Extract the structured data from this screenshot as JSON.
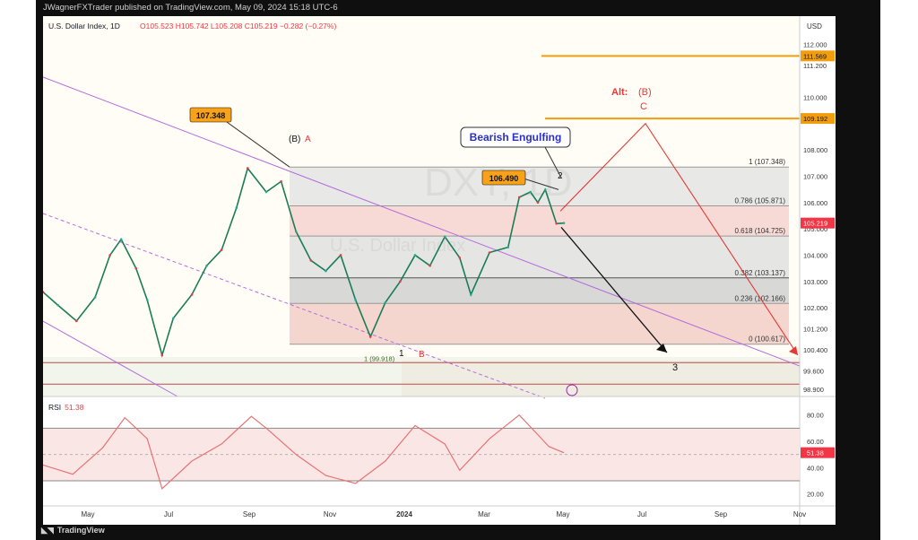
{
  "header": {
    "publisher": "JWagnerFXTrader published on TradingView.com, May 09, 2024 15:18 UTC-6"
  },
  "footer": {
    "brand": "TradingView"
  },
  "legend": {
    "symbol": "U.S. Dollar Index, 1D",
    "ohlc": "O105.523  H105.742  L105.208  C105.219  −0.282 (−0.27%)"
  },
  "chart_data": {
    "type": "line",
    "currency": "USD",
    "watermark": "DXY, 1D",
    "watermark_sub": "U.S. Dollar Index",
    "y_ticks": [
      "112.000",
      "111.200",
      "110.000",
      "109.200",
      "108.000",
      "107.000",
      "106.000",
      "105.000",
      "104.000",
      "103.000",
      "102.000",
      "101.200",
      "100.400",
      "99.600",
      "98.900"
    ],
    "x_ticks": [
      "May",
      "Jul",
      "Sep",
      "Nov",
      "2024",
      "Mar",
      "May",
      "Jul",
      "Sep",
      "Nov"
    ],
    "last_price": "105.219",
    "price_badges": [
      "111.569",
      "109.192"
    ],
    "fib_levels": [
      {
        "label": "1 (107.348)",
        "value": 107.348
      },
      {
        "label": "0.786 (105.871)",
        "value": 105.871
      },
      {
        "label": "0.618 (104.725)",
        "value": 104.725
      },
      {
        "label": "0.382 (103.137)",
        "value": 103.137
      },
      {
        "label": "0.236 (102.166)",
        "value": 102.166
      },
      {
        "label": "0 (100.617)",
        "value": 100.617
      }
    ],
    "fib_lower_label": "1 (99.918)",
    "callouts": [
      "107.348",
      "106.490",
      "Bearish Engulfing"
    ],
    "wave_labels": {
      "b_black": "(B)",
      "a_red": "A",
      "alt": "Alt:",
      "alt_b": "(B)",
      "c": "C",
      "w2": "2",
      "w1": "1",
      "b2": "B",
      "w3": "3"
    },
    "price_path": [
      [
        0,
        102.6
      ],
      [
        0.02,
        102.1
      ],
      [
        0.045,
        101.5
      ],
      [
        0.07,
        102.4
      ],
      [
        0.09,
        104.0
      ],
      [
        0.105,
        104.6
      ],
      [
        0.125,
        103.5
      ],
      [
        0.14,
        102.3
      ],
      [
        0.16,
        100.2
      ],
      [
        0.175,
        101.6
      ],
      [
        0.2,
        102.5
      ],
      [
        0.22,
        103.6
      ],
      [
        0.24,
        104.2
      ],
      [
        0.26,
        105.8
      ],
      [
        0.275,
        107.3
      ],
      [
        0.3,
        106.4
      ],
      [
        0.32,
        106.8
      ],
      [
        0.34,
        104.9
      ],
      [
        0.36,
        103.8
      ],
      [
        0.38,
        103.4
      ],
      [
        0.4,
        104.0
      ],
      [
        0.42,
        102.3
      ],
      [
        0.44,
        100.9
      ],
      [
        0.46,
        102.2
      ],
      [
        0.48,
        103.0
      ],
      [
        0.5,
        104.0
      ],
      [
        0.52,
        103.6
      ],
      [
        0.54,
        104.7
      ],
      [
        0.56,
        103.9
      ],
      [
        0.575,
        102.5
      ],
      [
        0.6,
        104.1
      ],
      [
        0.625,
        104.3
      ],
      [
        0.64,
        106.2
      ],
      [
        0.655,
        106.4
      ],
      [
        0.665,
        106.0
      ],
      [
        0.675,
        106.49
      ],
      [
        0.69,
        105.2
      ],
      [
        0.7,
        105.219
      ]
    ],
    "rsi": {
      "label": "RSI",
      "value": "51.38",
      "ticks": [
        "80.00",
        "60.00",
        "40.00",
        "20.00"
      ],
      "points": [
        [
          0,
          42
        ],
        [
          0.04,
          35
        ],
        [
          0.08,
          55
        ],
        [
          0.11,
          78
        ],
        [
          0.14,
          62
        ],
        [
          0.16,
          24
        ],
        [
          0.2,
          45
        ],
        [
          0.24,
          58
        ],
        [
          0.28,
          79
        ],
        [
          0.3,
          70
        ],
        [
          0.34,
          50
        ],
        [
          0.38,
          34
        ],
        [
          0.42,
          28
        ],
        [
          0.46,
          45
        ],
        [
          0.5,
          72
        ],
        [
          0.54,
          58
        ],
        [
          0.56,
          38
        ],
        [
          0.6,
          62
        ],
        [
          0.64,
          80
        ],
        [
          0.66,
          68
        ],
        [
          0.68,
          56
        ],
        [
          0.7,
          51.38
        ]
      ]
    }
  }
}
